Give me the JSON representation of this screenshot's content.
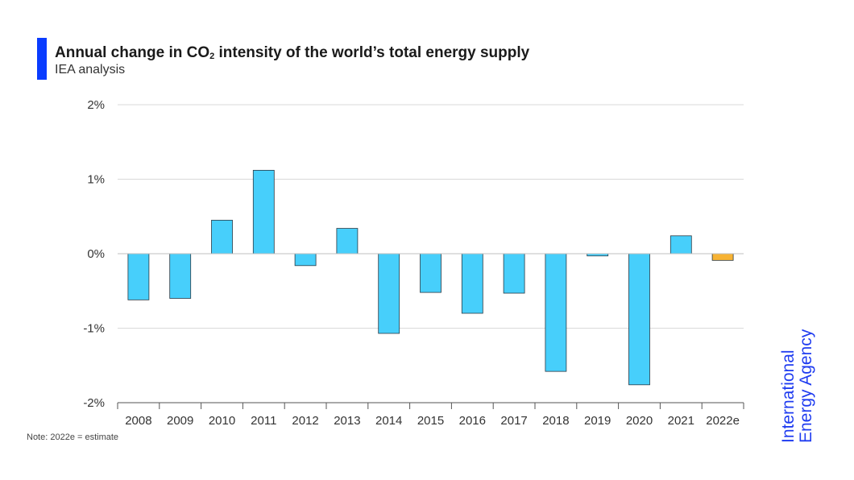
{
  "title_main": "Annual change in CO",
  "title_sub": "2",
  "title_rest": " intensity of the world’s total energy supply",
  "subtitle": "IEA analysis",
  "note": "Note: 2022e = estimate",
  "logo_line1": "International",
  "logo_line2": "Energy Agency",
  "colors": {
    "bar": "#47cffb",
    "estimate": "#f7b334",
    "accent": "#0a3cff",
    "logo": "#1f3cf0"
  },
  "chart_data": {
    "type": "bar",
    "categories": [
      "2008",
      "2009",
      "2010",
      "2011",
      "2012",
      "2013",
      "2014",
      "2015",
      "2016",
      "2017",
      "2018",
      "2019",
      "2020",
      "2021",
      "2022e"
    ],
    "values": [
      -0.62,
      -0.6,
      0.45,
      1.12,
      -0.16,
      0.34,
      -1.07,
      -0.52,
      -0.8,
      -0.53,
      -1.58,
      -0.03,
      -1.76,
      0.24,
      -0.09
    ],
    "estimate_categories": [
      "2022e"
    ],
    "ylim": [
      -2,
      2
    ],
    "yticks": [
      2,
      1,
      0,
      -1,
      -2
    ],
    "ytick_labels": [
      "2%",
      "1%",
      "0%",
      "-1%",
      "-2%"
    ],
    "grid": true,
    "xlabel": "",
    "ylabel": ""
  }
}
